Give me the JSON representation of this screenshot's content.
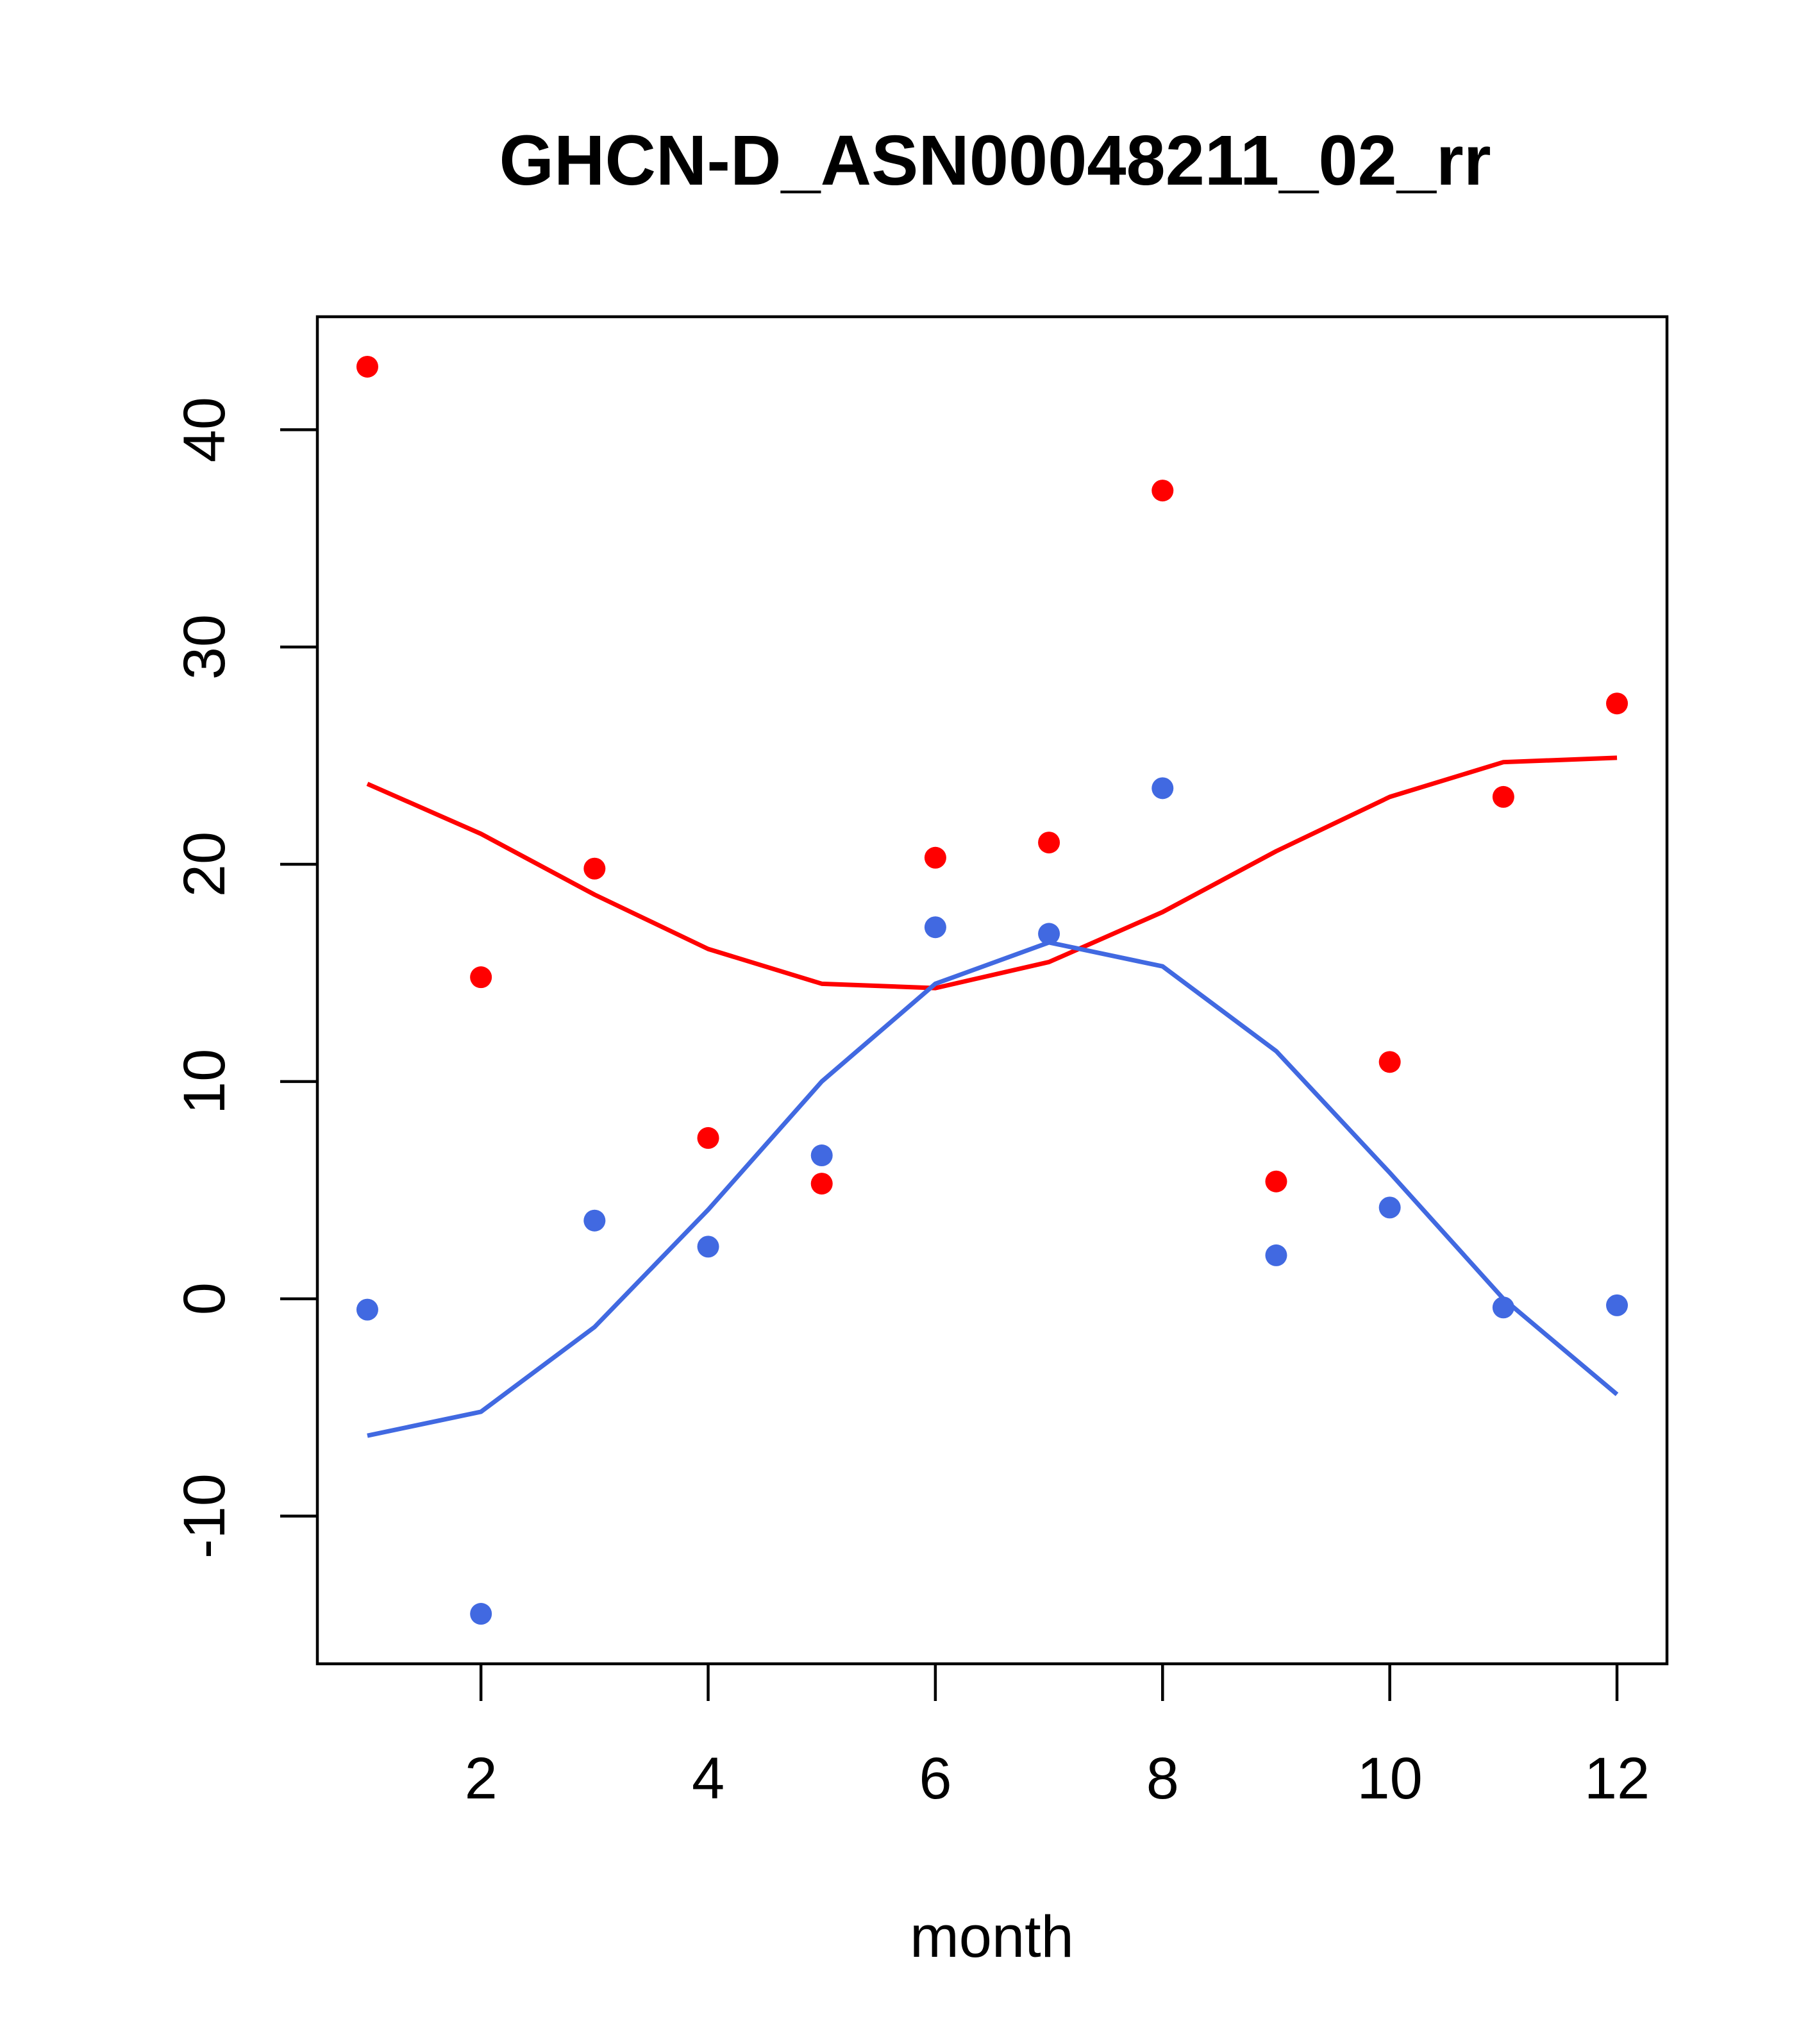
{
  "chart_data": {
    "type": "scatter",
    "title": "GHCN-D_ASN00048211_02_rr",
    "xlabel": "month",
    "ylabel": "",
    "xlim": [
      0.56,
      12.44
    ],
    "ylim": [
      -16.8,
      45.2
    ],
    "x_ticks": [
      2,
      4,
      6,
      8,
      10,
      12
    ],
    "y_ticks": [
      -10,
      0,
      10,
      20,
      30,
      40
    ],
    "x": [
      1,
      2,
      3,
      4,
      5,
      6,
      7,
      8,
      9,
      10,
      11,
      12
    ],
    "series": [
      {
        "color": "#ff0000",
        "points": [
          42.9,
          14.8,
          19.8,
          7.4,
          5.3,
          20.3,
          21.0,
          37.2,
          5.4,
          10.9,
          23.1,
          27.4
        ],
        "line": [
          23.7,
          21.4,
          18.6,
          16.1,
          14.5,
          14.3,
          15.5,
          17.8,
          20.6,
          23.1,
          24.7,
          24.9
        ]
      },
      {
        "color": "#4169e1",
        "points": [
          -0.5,
          -14.5,
          3.6,
          2.4,
          6.6,
          17.1,
          16.8,
          23.5,
          2.0,
          4.2,
          -0.4,
          -0.3
        ],
        "line": [
          -6.3,
          -5.2,
          -1.3,
          4.1,
          10.0,
          14.5,
          16.4,
          15.3,
          11.4,
          5.8,
          0.0,
          -4.4
        ]
      }
    ]
  }
}
